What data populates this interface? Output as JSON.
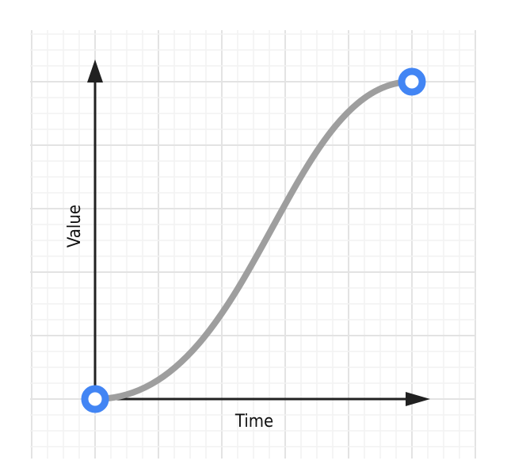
{
  "diagram": {
    "x_axis_label": "Time",
    "y_axis_label": "Value",
    "curve": {
      "type": "cubic-bezier",
      "control_points": [
        0.5,
        0,
        0.6,
        1
      ]
    },
    "colors": {
      "axis": "#212121",
      "curve": "#9e9e9e",
      "endpoint": "#4285f4",
      "grid_major": "#e3e3e3",
      "grid_minor": "#f2f2f2"
    }
  }
}
